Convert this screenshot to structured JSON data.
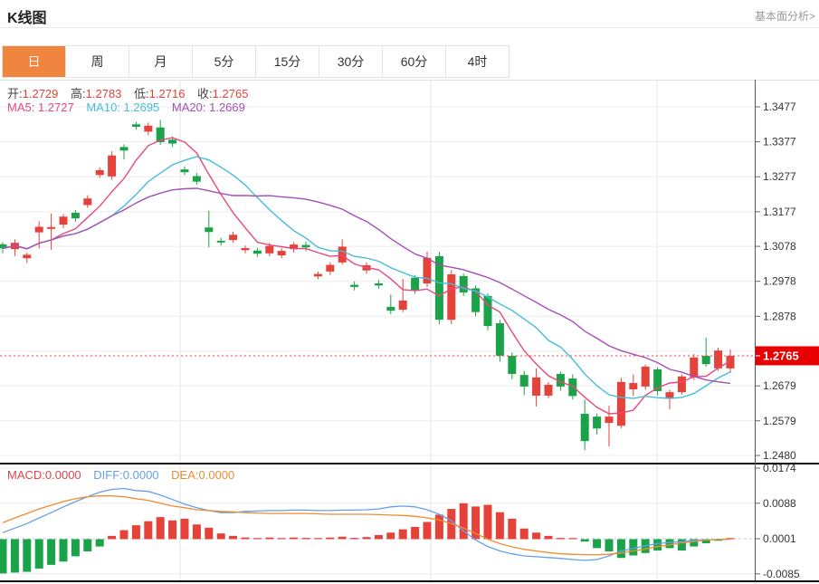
{
  "header": {
    "title": "K线图",
    "link": "基本面分析>"
  },
  "tabs": {
    "items": [
      "日",
      "周",
      "月",
      "5分",
      "15分",
      "30分",
      "60分",
      "4时"
    ],
    "active_index": 0
  },
  "kline_legend": {
    "open_label": "开:",
    "open_value": "1.2729",
    "high_label": "高:",
    "high_value": "1.2783",
    "low_label": "低:",
    "low_value": "1.2716",
    "close_label": "收:",
    "close_value": "1.2765"
  },
  "ma_legend": {
    "ma5": "MA5: 1.2727",
    "ma10": "MA10: 1.2695",
    "ma20": "MA20: 1.2669"
  },
  "macd_legend": {
    "macd": "MACD:0.0000",
    "diff": "DIFF:0.0000",
    "dea": "DEA:0.0000"
  },
  "price_tag": "1.2765",
  "colors": {
    "up": "#e5423a",
    "down": "#1aa348",
    "ma5": "#e8487e",
    "ma10": "#45bdd8",
    "ma20": "#a64db8",
    "diff": "#64a0ea",
    "dea": "#ee8d30",
    "grid": "#ececec",
    "vgrid": "#e6e6e6",
    "axis": "#555555",
    "label": "#333333",
    "tag_bg": "#e80000",
    "price_line": "#ff4040",
    "zero_dash": "#b9cfe0",
    "separator": "#111111",
    "tab_active": "#f0853f"
  },
  "chart_data": {
    "type": "candlestick+macd",
    "panels": [
      {
        "type": "candlestick",
        "ylim": [
          1.248,
          1.3477
        ],
        "y_axis_labels": [
          "1.3477",
          "1.3377",
          "1.3277",
          "1.3177",
          "1.3078",
          "1.2978",
          "1.2878",
          "1.2778",
          "1.2679",
          "1.2579",
          "1.2480"
        ],
        "ma_periods": [
          5,
          10,
          20
        ],
        "last_price": 1.2765,
        "candles_format": [
          "open",
          "close",
          "high",
          "low"
        ],
        "candles": [
          [
            1.3084,
            1.3072,
            1.309,
            1.3058
          ],
          [
            1.307,
            1.3088,
            1.3098,
            1.305
          ],
          [
            1.3044,
            1.3054,
            1.306,
            1.303
          ],
          [
            1.3118,
            1.3134,
            1.315,
            1.3072
          ],
          [
            1.3128,
            1.3133,
            1.3172,
            1.3068
          ],
          [
            1.314,
            1.3163,
            1.317,
            1.313
          ],
          [
            1.3174,
            1.3158,
            1.3182,
            1.3148
          ],
          [
            1.3196,
            1.3215,
            1.3224,
            1.3188
          ],
          [
            1.3282,
            1.3296,
            1.3304,
            1.3274
          ],
          [
            1.3278,
            1.3338,
            1.335,
            1.3268
          ],
          [
            1.3362,
            1.3352,
            1.337,
            1.3326
          ],
          [
            1.3427,
            1.342,
            1.3434,
            1.3412
          ],
          [
            1.3406,
            1.3423,
            1.3432,
            1.3396
          ],
          [
            1.3418,
            1.3376,
            1.344,
            1.3368
          ],
          [
            1.3383,
            1.3372,
            1.3392,
            1.3362
          ],
          [
            1.3298,
            1.329,
            1.3306,
            1.3282
          ],
          [
            1.3279,
            1.3263,
            1.3288,
            1.3254
          ],
          [
            1.3132,
            1.3119,
            1.318,
            1.3075
          ],
          [
            1.3094,
            1.3089,
            1.3102,
            1.308
          ],
          [
            1.3096,
            1.3111,
            1.312,
            1.3088
          ],
          [
            1.3067,
            1.3073,
            1.308,
            1.3058
          ],
          [
            1.3066,
            1.3057,
            1.3074,
            1.3048
          ],
          [
            1.3058,
            1.3079,
            1.3088,
            1.305
          ],
          [
            1.3052,
            1.3065,
            1.3072,
            1.3044
          ],
          [
            1.307,
            1.3083,
            1.309,
            1.306
          ],
          [
            1.3082,
            1.3075,
            1.3092,
            1.3064
          ],
          [
            1.2992,
            1.2999,
            1.3006,
            1.2984
          ],
          [
            1.3006,
            1.3025,
            1.3032,
            1.2996
          ],
          [
            1.3032,
            1.3077,
            1.3098,
            1.3026
          ],
          [
            1.2968,
            1.2962,
            1.2978,
            1.2952
          ],
          [
            1.3009,
            1.3024,
            1.3032,
            1.3
          ],
          [
            1.2972,
            1.2966,
            1.2982,
            1.2956
          ],
          [
            1.2905,
            1.2894,
            1.294,
            1.2884
          ],
          [
            1.2897,
            1.2923,
            1.2985,
            1.289
          ],
          [
            1.2988,
            1.2951,
            1.2996,
            1.2942
          ],
          [
            1.2972,
            1.3045,
            1.3063,
            1.2962
          ],
          [
            1.305,
            1.2868,
            1.3062,
            1.2855
          ],
          [
            1.2868,
            1.2998,
            1.301,
            1.2855
          ],
          [
            1.2993,
            1.2946,
            1.3,
            1.2936
          ],
          [
            1.2958,
            1.289,
            1.2966,
            1.2878
          ],
          [
            1.2936,
            1.285,
            1.2944,
            1.2838
          ],
          [
            1.2858,
            1.2765,
            1.2868,
            1.2748
          ],
          [
            1.2765,
            1.2713,
            1.2775,
            1.2698
          ],
          [
            1.271,
            1.2677,
            1.2722,
            1.2652
          ],
          [
            1.2651,
            1.2703,
            1.2729,
            1.262
          ],
          [
            1.2651,
            1.2682,
            1.269,
            1.2644
          ],
          [
            1.2713,
            1.2677,
            1.272,
            1.2665
          ],
          [
            1.27,
            1.265,
            1.2712,
            1.264
          ],
          [
            1.2599,
            1.2521,
            1.264,
            1.2495
          ],
          [
            1.2591,
            1.2557,
            1.26,
            1.254
          ],
          [
            1.2573,
            1.2591,
            1.2622,
            1.2506
          ],
          [
            1.2565,
            1.269,
            1.2702,
            1.2558
          ],
          [
            1.2669,
            1.2687,
            1.2712,
            1.265
          ],
          [
            1.2677,
            1.2734,
            1.274,
            1.2668
          ],
          [
            1.2726,
            1.2664,
            1.2732,
            1.2652
          ],
          [
            1.2643,
            1.2661,
            1.2668,
            1.2612
          ],
          [
            1.2661,
            1.2706,
            1.2712,
            1.2654
          ],
          [
            1.2703,
            1.276,
            1.277,
            1.2696
          ],
          [
            1.2765,
            1.2741,
            1.2817,
            1.2734
          ],
          [
            1.2729,
            1.278,
            1.2788,
            1.2722
          ],
          [
            1.2729,
            1.2765,
            1.2783,
            1.2716
          ]
        ]
      },
      {
        "type": "macd",
        "ylim": [
          -0.0085,
          0.0174
        ],
        "y_axis_labels": [
          "0.0174",
          "0.0088",
          "0.0001",
          "-0.0085"
        ],
        "histogram": [
          -0.0084,
          -0.0082,
          -0.008,
          -0.0072,
          -0.0063,
          -0.0055,
          -0.0042,
          -0.003,
          -0.0018,
          0.0008,
          0.0022,
          0.0034,
          0.0044,
          0.0054,
          0.0046,
          0.005,
          0.0036,
          0.0028,
          0.0014,
          0.0008,
          0.0004,
          0.0002,
          0.0004,
          0.0002,
          0.0004,
          0.0003,
          0.0002,
          0.0004,
          0.0006,
          0.0003,
          0.0005,
          0.001,
          0.0016,
          0.0024,
          0.003,
          0.0042,
          0.006,
          0.0074,
          0.0088,
          0.008,
          0.0084,
          0.0066,
          0.005,
          0.0026,
          0.0016,
          0.0008,
          0.0003,
          0.0002,
          -0.0006,
          -0.0022,
          -0.003,
          -0.0046,
          -0.004,
          -0.0034,
          -0.0028,
          -0.0022,
          -0.0028,
          -0.0018,
          -0.001,
          -0.0004,
          0.0001
        ],
        "diff": [
          0.0016,
          0.0027,
          0.0038,
          0.0052,
          0.0065,
          0.0079,
          0.0092,
          0.0104,
          0.0115,
          0.0122,
          0.0124,
          0.0119,
          0.0117,
          0.0108,
          0.0097,
          0.0086,
          0.0077,
          0.007,
          0.0065,
          0.0065,
          0.0068,
          0.0069,
          0.007,
          0.007,
          0.0071,
          0.0071,
          0.007,
          0.007,
          0.0071,
          0.0071,
          0.0072,
          0.0074,
          0.0079,
          0.0081,
          0.0079,
          0.0072,
          0.0061,
          0.0045,
          0.002,
          -0.0002,
          -0.0018,
          -0.0029,
          -0.0036,
          -0.0041,
          -0.0043,
          -0.0045,
          -0.0047,
          -0.005,
          -0.0052,
          -0.005,
          -0.0041,
          -0.0029,
          -0.0023,
          -0.0016,
          -0.0011,
          -0.0008,
          -0.0006,
          -0.0003,
          -0.0002,
          -0.0001,
          0.0
        ],
        "dea": [
          0.004,
          0.0052,
          0.0063,
          0.0074,
          0.0083,
          0.0092,
          0.0099,
          0.0104,
          0.0106,
          0.0106,
          0.0104,
          0.0099,
          0.0095,
          0.0088,
          0.0081,
          0.0077,
          0.0072,
          0.007,
          0.0068,
          0.0067,
          0.0065,
          0.0064,
          0.0063,
          0.0063,
          0.0063,
          0.0063,
          0.0062,
          0.0061,
          0.0061,
          0.0061,
          0.0061,
          0.006,
          0.0059,
          0.0058,
          0.0056,
          0.0052,
          0.0047,
          0.0038,
          0.0027,
          0.0014,
          0.0,
          -0.0011,
          -0.0019,
          -0.0025,
          -0.0029,
          -0.0033,
          -0.0036,
          -0.0037,
          -0.0038,
          -0.0038,
          -0.0037,
          -0.0034,
          -0.0029,
          -0.0024,
          -0.0018,
          -0.0014,
          -0.0009,
          -0.0006,
          -0.0002,
          -0.0001,
          0.0
        ]
      }
    ]
  }
}
